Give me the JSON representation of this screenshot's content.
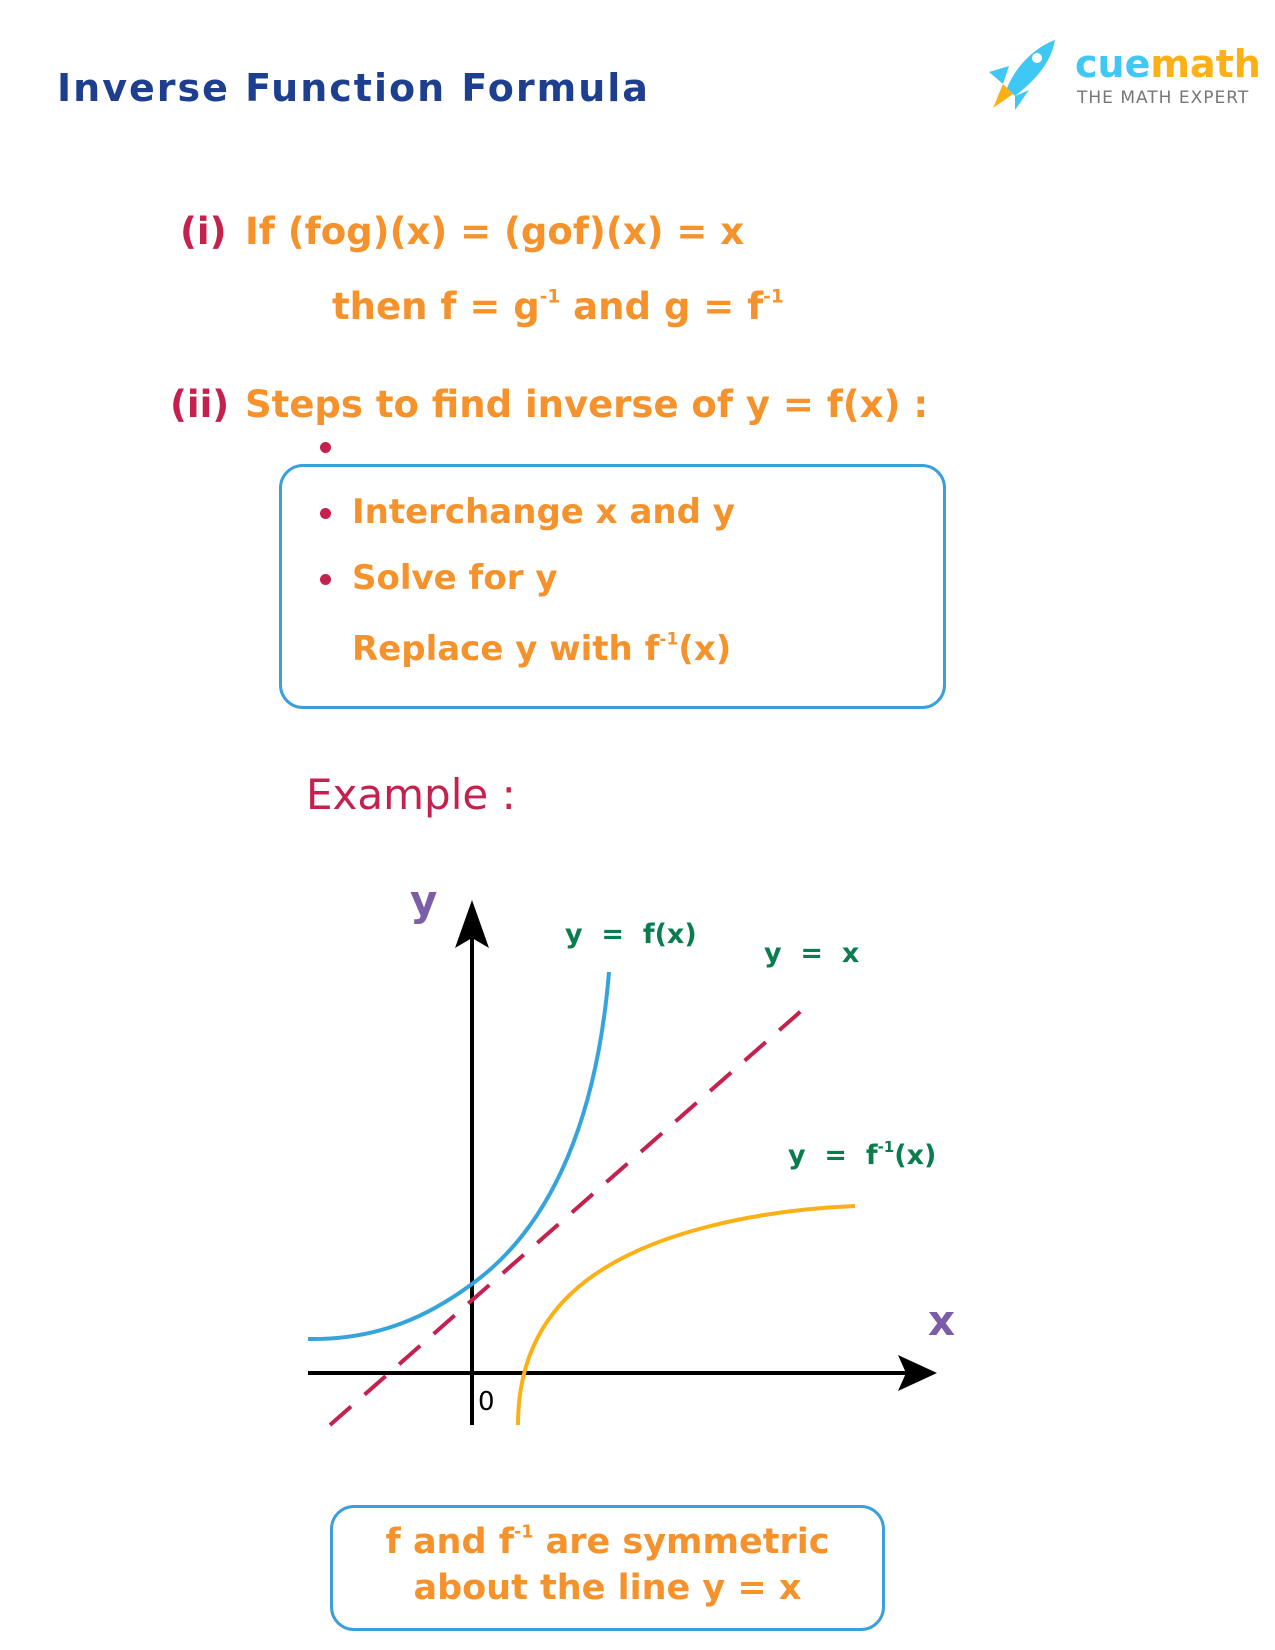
{
  "header": {
    "title": "Inverse Function Formula"
  },
  "logo": {
    "brand_part1": "cue",
    "brand_part2": "math",
    "tagline": "THE MATH EXPERT"
  },
  "formula_i": {
    "label": "(i)",
    "line1": "If  (fog)(x) = (gof)(x) = x",
    "line2_a": "then f = g",
    "line2_sup1": "-1",
    "line2_b": " and g = f",
    "line2_sup2": "-1"
  },
  "formula_ii": {
    "label": "(ii)",
    "text": "Steps to find inverse of y = f(x) :"
  },
  "steps": [
    {
      "text": "Interchange x and y"
    },
    {
      "text": "Solve for y"
    },
    {
      "text_a": "Replace y with f",
      "sup": "-1",
      "text_b": "(x)"
    }
  ],
  "example": {
    "label": "Example :"
  },
  "graph": {
    "x_label": "x",
    "y_label": "y",
    "origin_label": "0",
    "curve_f_label": "y  =  f(x)",
    "line_label": "y  =  x",
    "curve_finv_label_a": "y  =  f",
    "curve_finv_sup": "-1",
    "curve_finv_label_b": "(x)",
    "colors": {
      "f": "#35a3dc",
      "finv": "#fbb016",
      "identity": "#c4214f",
      "axes": "#000000",
      "labels": "#0a7d4f",
      "axis_letters": "#7b5ea7"
    }
  },
  "conclusion": {
    "line1_a": "f and f",
    "line1_sup": "-1",
    "line1_b": " are symmetric",
    "line2": "about the line y = x"
  }
}
